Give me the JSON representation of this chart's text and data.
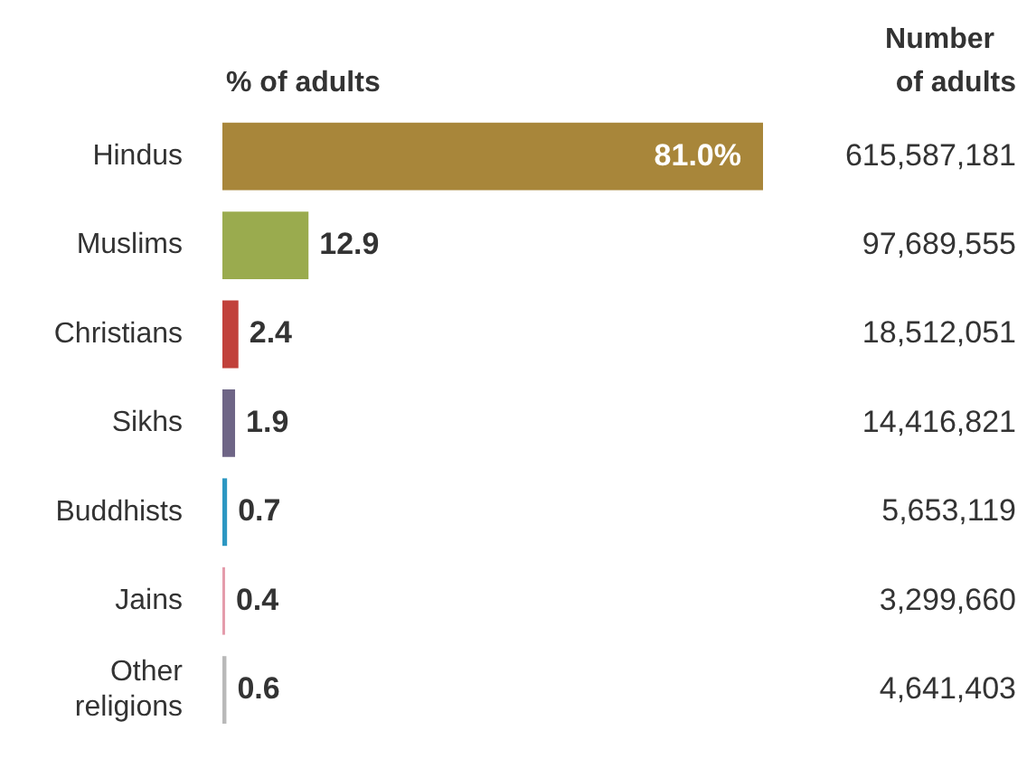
{
  "chart_data": {
    "type": "bar",
    "orientation": "horizontal",
    "xlabel": "% of adults",
    "categories": [
      "Hindus",
      "Muslims",
      "Christians",
      "Sikhs",
      "Buddhists",
      "Jains",
      "Other religions"
    ],
    "values": [
      81.0,
      12.9,
      2.4,
      1.9,
      0.7,
      0.4,
      0.6
    ],
    "colors": [
      "#a8863a",
      "#9aab4e",
      "#c1413b",
      "#6e6586",
      "#2c97c2",
      "#e49bab",
      "#b9b9b9"
    ],
    "value_labels": [
      "81.0%",
      "12.9",
      "2.4",
      "1.9",
      "0.7",
      "0.4",
      "0.6"
    ],
    "xlim": [
      0,
      81.0
    ],
    "legend": false,
    "annotations": [
      "Number of adults",
      "615,587,181",
      "97,689,555",
      "18,512,051",
      "14,416,821",
      "5,653,119",
      "3,299,660",
      "4,641,403"
    ]
  }
}
